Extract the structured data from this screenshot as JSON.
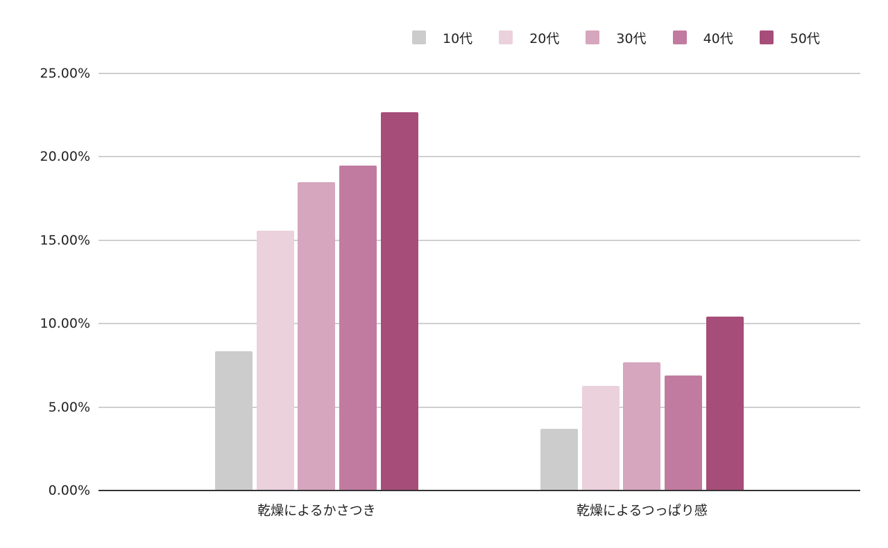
{
  "chart_data": {
    "type": "bar",
    "title": "",
    "xlabel": "",
    "ylabel": "",
    "categories": [
      "乾燥によるかさつき",
      "乾燥によるつっぱり感"
    ],
    "series": [
      {
        "name": "10代",
        "color": "#cccccc",
        "values": [
          8.33,
          3.69
        ]
      },
      {
        "name": "20代",
        "color": "#ead1dc",
        "values": [
          15.55,
          6.26
        ]
      },
      {
        "name": "30代",
        "color": "#d5a6bd",
        "values": [
          18.45,
          7.67
        ]
      },
      {
        "name": "40代",
        "color": "#c27ba0",
        "values": [
          19.45,
          6.88
        ]
      },
      {
        "name": "50代",
        "color": "#a64d79",
        "values": [
          22.64,
          10.4
        ]
      }
    ],
    "ylim": [
      0,
      25
    ],
    "yticks": [
      "0.00%",
      "5.00%",
      "10.00%",
      "15.00%",
      "20.00%",
      "25.00%"
    ],
    "grid": true,
    "legend_position": "top-right"
  },
  "legend": {
    "items": [
      {
        "label": "10代",
        "color": "#cccccc"
      },
      {
        "label": "20代",
        "color": "#ead1dc"
      },
      {
        "label": "30代",
        "color": "#d5a6bd"
      },
      {
        "label": "40代",
        "color": "#c27ba0"
      },
      {
        "label": "50代",
        "color": "#a64d79"
      }
    ]
  }
}
